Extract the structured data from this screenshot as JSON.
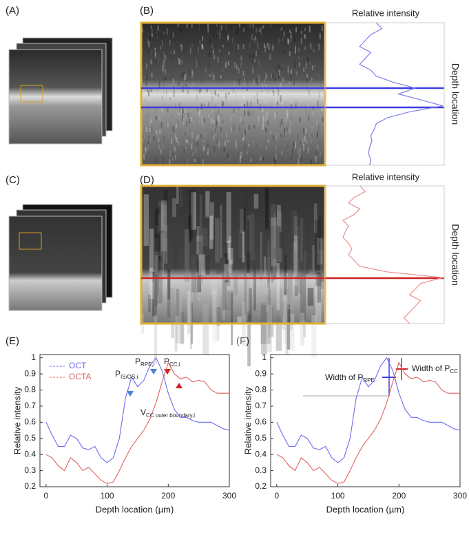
{
  "panel_labels": [
    "(A)",
    "(B)",
    "(C)",
    "(D)",
    "(E)",
    "(F)"
  ],
  "chart_data": [
    {
      "type": "profile",
      "title": "Relative intensity",
      "ylabel": "Depth location",
      "color": "#7a7cf0",
      "values": [
        0.4,
        0.45,
        0.35,
        0.3,
        0.25,
        0.35,
        0.3,
        0.25,
        0.35,
        0.4,
        0.55,
        0.75,
        0.6,
        0.8,
        1.0,
        0.7,
        0.5,
        0.4,
        0.38,
        0.35,
        0.36,
        0.34,
        0.33,
        0.35,
        0.34
      ]
    },
    {
      "type": "profile",
      "title": "Relative intensity",
      "ylabel": "Depth location",
      "color": "#e89090",
      "values": [
        0.25,
        0.3,
        0.2,
        0.15,
        0.25,
        0.2,
        0.1,
        0.15,
        0.12,
        0.1,
        0.15,
        0.18,
        0.15,
        0.2,
        0.25,
        0.5,
        1.0,
        0.8,
        0.75,
        0.7,
        0.8,
        0.75,
        0.7,
        0.65,
        0.7
      ]
    },
    {
      "type": "line",
      "xlabel": "Depth location (µm)",
      "ylabel": "Relative intensity",
      "xlim": [
        -10,
        300
      ],
      "ylim": [
        0.2,
        1.02
      ],
      "xticks": [
        0,
        100,
        200,
        300
      ],
      "yticks": [
        0.2,
        0.3,
        0.4,
        0.5,
        0.6,
        0.7,
        0.8,
        0.9,
        1
      ],
      "x": [
        0,
        10,
        20,
        30,
        40,
        50,
        60,
        70,
        80,
        90,
        100,
        110,
        120,
        130,
        140,
        150,
        160,
        170,
        180,
        190,
        200,
        210,
        220,
        230,
        240,
        250,
        260,
        270,
        280,
        290,
        300
      ],
      "series": [
        {
          "name": "OCT",
          "color": "#6a6af0",
          "values": [
            0.6,
            0.52,
            0.45,
            0.45,
            0.52,
            0.5,
            0.44,
            0.43,
            0.45,
            0.38,
            0.35,
            0.38,
            0.5,
            0.75,
            0.88,
            0.82,
            0.86,
            0.95,
            1.0,
            0.92,
            0.78,
            0.68,
            0.63,
            0.63,
            0.61,
            0.6,
            0.6,
            0.6,
            0.58,
            0.56,
            0.55
          ]
        },
        {
          "name": "OCTA",
          "color": "#e06060",
          "values": [
            0.4,
            0.38,
            0.33,
            0.3,
            0.38,
            0.35,
            0.3,
            0.32,
            0.28,
            0.24,
            0.22,
            0.23,
            0.3,
            0.38,
            0.45,
            0.5,
            0.55,
            0.62,
            0.72,
            0.85,
            0.97,
            0.9,
            0.87,
            0.88,
            0.85,
            0.86,
            0.85,
            0.8,
            0.78,
            0.78,
            0.78
          ]
        }
      ],
      "legend": "upper left",
      "annotations": [
        {
          "text": "P",
          "sub": "IS/OS,i"
        },
        {
          "text": "P",
          "sub": "RPE,i"
        },
        {
          "text": "P",
          "sub": "CC,i"
        },
        {
          "text": "V",
          "sub": "CC outer boundary,i"
        }
      ]
    },
    {
      "type": "line",
      "xlabel": "Depth location (µm)",
      "ylabel": "Relative intensity",
      "xlim": [
        -10,
        300
      ],
      "ylim": [
        0.2,
        1.02
      ],
      "xticks": [
        0,
        100,
        200,
        300
      ],
      "yticks": [
        0.2,
        0.3,
        0.4,
        0.5,
        0.6,
        0.7,
        0.8,
        0.9,
        1
      ],
      "x": [
        0,
        10,
        20,
        30,
        40,
        50,
        60,
        70,
        80,
        90,
        100,
        110,
        120,
        130,
        140,
        150,
        160,
        170,
        180,
        190,
        200,
        210,
        220,
        230,
        240,
        250,
        260,
        270,
        280,
        290,
        300
      ],
      "series": [
        {
          "color": "#6a6af0",
          "values": [
            0.6,
            0.52,
            0.45,
            0.45,
            0.52,
            0.5,
            0.44,
            0.43,
            0.45,
            0.38,
            0.35,
            0.38,
            0.5,
            0.75,
            0.88,
            0.82,
            0.86,
            0.95,
            1.0,
            0.92,
            0.78,
            0.68,
            0.63,
            0.63,
            0.61,
            0.6,
            0.6,
            0.6,
            0.58,
            0.56,
            0.55
          ]
        },
        {
          "color": "#e06060",
          "values": [
            0.4,
            0.38,
            0.33,
            0.3,
            0.38,
            0.35,
            0.3,
            0.32,
            0.28,
            0.24,
            0.22,
            0.23,
            0.3,
            0.38,
            0.45,
            0.5,
            0.55,
            0.62,
            0.72,
            0.85,
            0.97,
            0.9,
            0.87,
            0.88,
            0.85,
            0.86,
            0.85,
            0.8,
            0.78,
            0.78,
            0.78
          ]
        }
      ],
      "annotations": [
        {
          "text": "Width of P",
          "sub": "RPE"
        },
        {
          "text": "Width of P",
          "sub": "CC"
        }
      ]
    }
  ]
}
